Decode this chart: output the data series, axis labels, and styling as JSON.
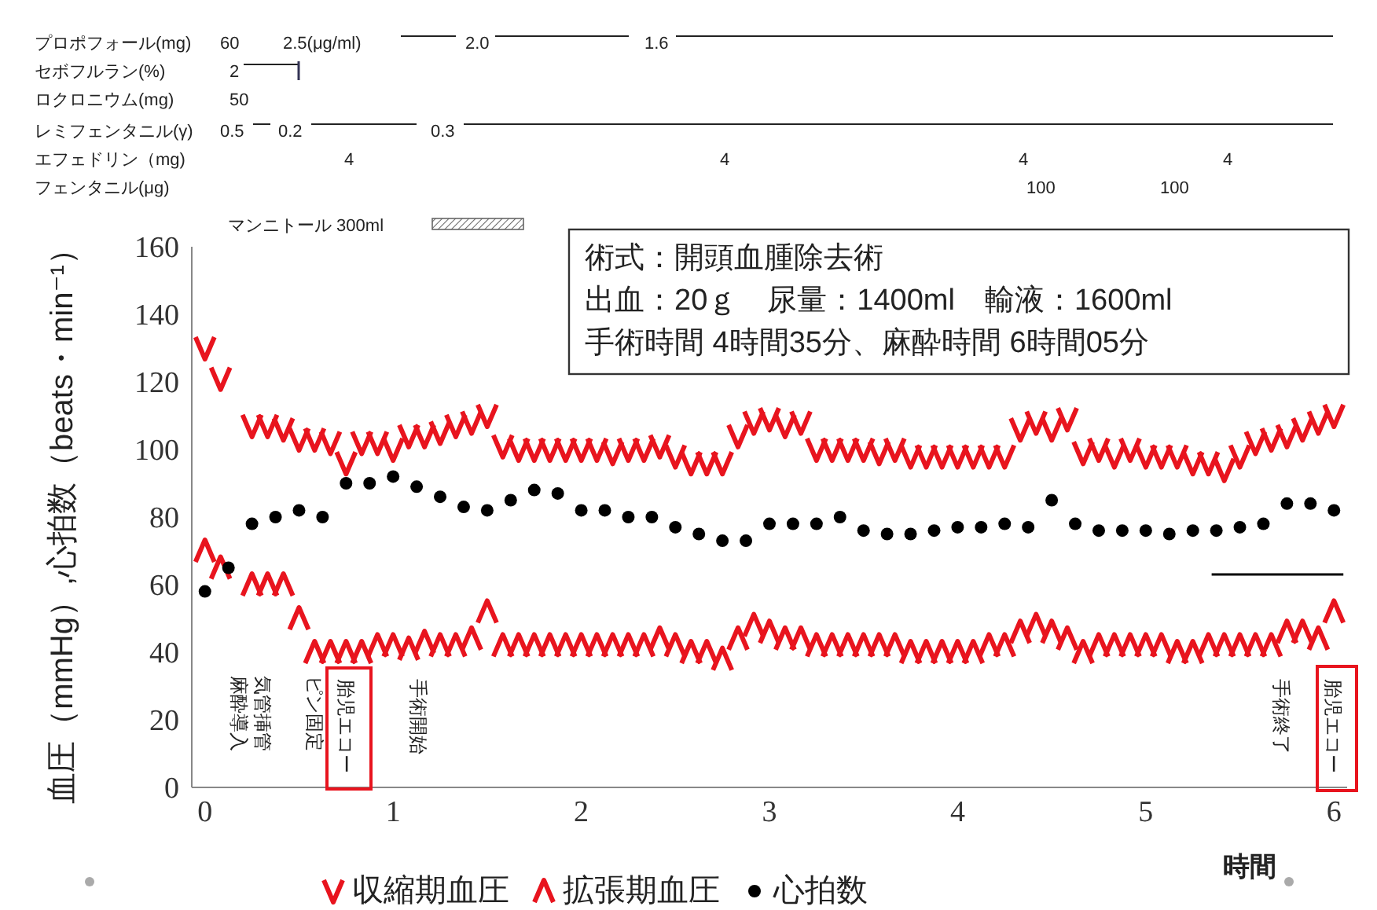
{
  "chart_data": {
    "type": "scatter",
    "ylabel": "血圧（mmHg）,心拍数（beats・min⁻¹）",
    "xlabel": "時間",
    "xlim": [
      -0.07,
      6.07
    ],
    "xticks": [
      0,
      1,
      2,
      3,
      4,
      5,
      6
    ],
    "ylim": [
      0,
      160
    ],
    "yticks": [
      0,
      20,
      40,
      60,
      80,
      100,
      120,
      140,
      160
    ],
    "legend": "bottom",
    "x": [
      0,
      0.083,
      0.167,
      0.25,
      0.333,
      0.417,
      0.5,
      0.583,
      0.667,
      0.75,
      0.833,
      0.917,
      1,
      1.083,
      1.167,
      1.25,
      1.333,
      1.417,
      1.5,
      1.583,
      1.667,
      1.75,
      1.833,
      1.917,
      2,
      2.083,
      2.167,
      2.25,
      2.333,
      2.417,
      2.5,
      2.583,
      2.667,
      2.75,
      2.833,
      2.917,
      3,
      3.083,
      3.167,
      3.25,
      3.333,
      3.417,
      3.5,
      3.583,
      3.667,
      3.75,
      3.833,
      3.917,
      4,
      4.083,
      4.167,
      4.25,
      4.333,
      4.417,
      4.5,
      4.583,
      4.667,
      4.75,
      4.833,
      4.917,
      5,
      5.083,
      5.167,
      5.25,
      5.333,
      5.417,
      5.5,
      5.583,
      5.667,
      5.75,
      5.833,
      5.917,
      6
    ],
    "series": [
      {
        "name": "収縮期血圧",
        "color": "#e8141e",
        "values": [
          130,
          121,
          null,
          107,
          107,
          106,
          103,
          103,
          102,
          96,
          102,
          102,
          100,
          104,
          104,
          105,
          107,
          108,
          110,
          101,
          100,
          100,
          100,
          100,
          100,
          100,
          99,
          100,
          100,
          101,
          98,
          96,
          96,
          96,
          104,
          108,
          109,
          107,
          108,
          100,
          100,
          100,
          100,
          99,
          100,
          98,
          98,
          98,
          98,
          98,
          98,
          98,
          106,
          108,
          106,
          109,
          99,
          100,
          98,
          100,
          98,
          98,
          98,
          96,
          96,
          94,
          98,
          102,
          103,
          104,
          106,
          108,
          110
        ]
      },
      {
        "name": "拡張期血圧",
        "color": "#e8141e",
        "values": [
          70,
          65,
          null,
          60,
          60,
          60,
          50,
          40,
          40,
          40,
          40,
          42,
          42,
          41,
          43,
          42,
          42,
          44,
          52,
          42,
          42,
          42,
          42,
          42,
          42,
          42,
          42,
          42,
          42,
          44,
          42,
          40,
          40,
          38,
          44,
          48,
          46,
          44,
          44,
          42,
          42,
          42,
          42,
          42,
          42,
          40,
          40,
          40,
          40,
          40,
          42,
          42,
          46,
          48,
          46,
          44,
          40,
          42,
          42,
          42,
          42,
          42,
          40,
          40,
          42,
          42,
          42,
          42,
          42,
          46,
          46,
          44,
          52
        ]
      },
      {
        "name": "心拍数",
        "color": "#000000",
        "marker": "circle",
        "x": [
          0,
          0.125,
          0.25,
          0.375,
          0.5,
          0.625,
          0.75,
          0.875,
          1,
          1.125,
          1.25,
          1.375,
          1.5,
          1.625,
          1.75,
          1.875,
          2,
          2.125,
          2.25,
          2.375,
          2.5,
          2.625,
          2.75,
          2.875,
          3,
          3.125,
          3.25,
          3.375,
          3.5,
          3.625,
          3.75,
          3.875,
          4,
          4.125,
          4.25,
          4.375,
          4.5,
          4.625,
          4.75,
          4.875,
          5,
          5.125,
          5.25,
          5.375,
          5.5,
          5.625,
          5.75,
          5.875,
          6
        ],
        "values": [
          58,
          65,
          78,
          80,
          82,
          80,
          90,
          90,
          92,
          89,
          86,
          83,
          82,
          85,
          88,
          87,
          82,
          82,
          80,
          80,
          77,
          75,
          73,
          73,
          78,
          78,
          78,
          80,
          76,
          75,
          75,
          76,
          77,
          77,
          78,
          77,
          85,
          78,
          76,
          76,
          76,
          75,
          76,
          76,
          77,
          78,
          84,
          84,
          82
        ]
      },
      {
        "type": "line",
        "color": "#000000",
        "marker": "none",
        "x": [
          5.35,
          6.05
        ],
        "values": [
          63,
          63
        ]
      }
    ],
    "annotations": [
      "プロポフォール(mg)",
      "60",
      "2.5(μg/ml)",
      "2.0",
      "1.6",
      "セボフルラン(%)",
      "2",
      "ロクロニウム(mg)",
      "50",
      "レミフェンタニル(γ)",
      "0.5",
      "0.2",
      "0.3",
      "エフェドリン（mg)",
      "4",
      "4",
      "4",
      "4",
      "フェンタニル(μg)",
      "100",
      "100",
      "マンニトール 300ml",
      "術式：開頭血腫除去術",
      "出血：20ｇ　尿量：1400ml　輸液：1600ml",
      "手術時間 4時間35分、麻酔時間 6時間05分",
      "気管挿管",
      "麻酔導入",
      "ピン固定",
      "胎児エコー",
      "手術開始",
      "手術終了",
      "胎児エコー"
    ]
  }
}
